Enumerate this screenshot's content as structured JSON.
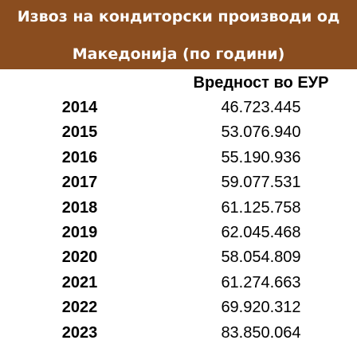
{
  "chart_data": {
    "type": "table",
    "title": "Извоз на кондиторски производи од Македонија (по години)",
    "title_lines": [
      "Извоз на кондиторски производи од",
      "Македонија (по години)"
    ],
    "column_header": "Вредност во ЕУР",
    "rows": [
      {
        "year": "2014",
        "value": "46.723.445"
      },
      {
        "year": "2015",
        "value": "53.076.940"
      },
      {
        "year": "2016",
        "value": "55.190.936"
      },
      {
        "year": "2017",
        "value": "59.077.531"
      },
      {
        "year": "2018",
        "value": "61.125.758"
      },
      {
        "year": "2019",
        "value": "62.045.468"
      },
      {
        "year": "2020",
        "value": "58.054.809"
      },
      {
        "year": "2021",
        "value": "61.274.663"
      },
      {
        "year": "2022",
        "value": "69.920.312"
      },
      {
        "year": "2023",
        "value": "83.850.064"
      }
    ]
  },
  "colors": {
    "title_background": "#8a4d1f",
    "title_text": "#ffffff",
    "body_text": "#000000"
  }
}
